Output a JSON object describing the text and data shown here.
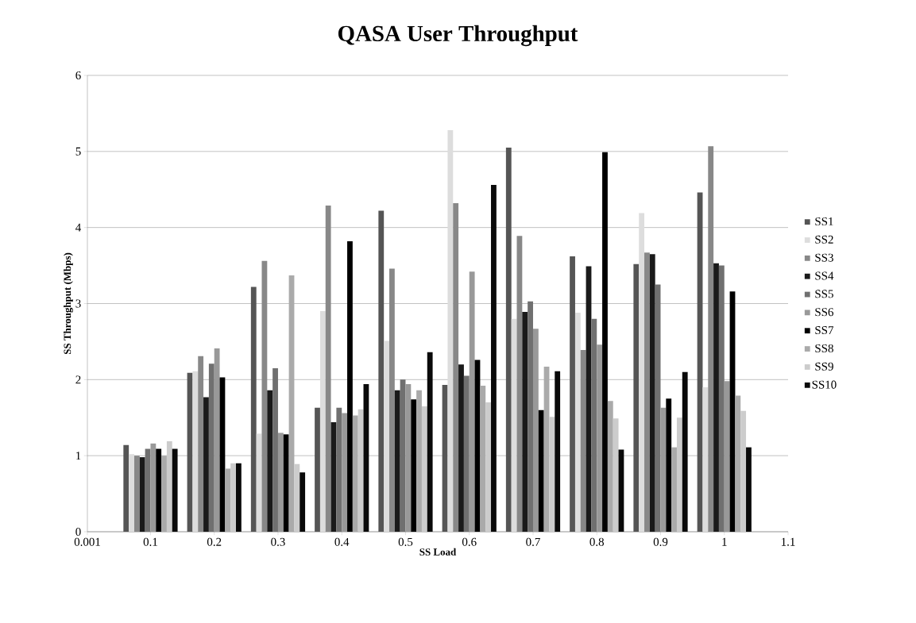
{
  "chart_data": {
    "type": "bar",
    "title": "QASA User Throughput",
    "xlabel": "SS Load",
    "ylabel": "SS Throughput (Mbps)",
    "x": [
      0.1,
      0.2,
      0.3,
      0.4,
      0.5,
      0.6,
      0.7,
      0.8,
      0.9,
      1
    ],
    "xlim": [
      0.001,
      1.1
    ],
    "xticks": [
      0.001,
      0.1,
      0.2,
      0.3,
      0.4,
      0.5,
      0.6,
      0.7,
      0.8,
      0.9,
      1,
      1.1
    ],
    "ylim": [
      0,
      6
    ],
    "yticks": [
      0,
      1,
      2,
      3,
      4,
      5,
      6
    ],
    "grid": "y",
    "legend": "right",
    "series": [
      {
        "name": "SS1",
        "color": "#555555",
        "values": [
          1.14,
          2.09,
          3.22,
          1.63,
          4.22,
          1.93,
          5.05,
          3.62,
          3.52,
          4.46
        ]
      },
      {
        "name": "SS2",
        "color": "#dddddd",
        "values": [
          1.02,
          2.11,
          1.29,
          2.9,
          2.51,
          5.28,
          2.8,
          2.88,
          4.19,
          1.9
        ]
      },
      {
        "name": "SS3",
        "color": "#888888",
        "values": [
          1.0,
          2.31,
          3.56,
          4.29,
          3.46,
          4.32,
          3.89,
          2.39,
          3.67,
          5.07
        ]
      },
      {
        "name": "SS4",
        "color": "#1a1a1a",
        "values": [
          0.98,
          1.77,
          1.86,
          1.44,
          1.86,
          2.2,
          2.89,
          3.49,
          3.65,
          3.53
        ]
      },
      {
        "name": "SS5",
        "color": "#707070",
        "values": [
          1.09,
          2.21,
          2.15,
          1.63,
          2.0,
          2.05,
          3.03,
          2.8,
          3.25,
          3.5
        ]
      },
      {
        "name": "SS6",
        "color": "#999999",
        "values": [
          1.16,
          2.41,
          1.3,
          1.56,
          1.94,
          3.42,
          2.67,
          2.46,
          1.63,
          1.98
        ]
      },
      {
        "name": "SS7",
        "color": "#000000",
        "values": [
          1.09,
          2.03,
          1.28,
          3.82,
          1.74,
          2.26,
          1.6,
          4.99,
          1.75,
          3.16
        ]
      },
      {
        "name": "SS8",
        "color": "#aaaaaa",
        "values": [
          1.0,
          0.83,
          3.37,
          1.53,
          1.86,
          1.92,
          2.17,
          1.72,
          1.11,
          1.79
        ]
      },
      {
        "name": "SS9",
        "color": "#cccccc",
        "values": [
          1.19,
          0.9,
          0.89,
          1.61,
          1.65,
          1.7,
          1.51,
          1.49,
          1.5,
          1.59
        ]
      },
      {
        "name": "SS10",
        "color": "#0a0a0a",
        "values": [
          1.09,
          0.9,
          0.78,
          1.94,
          2.36,
          4.56,
          2.11,
          1.08,
          2.1,
          1.11
        ]
      }
    ]
  }
}
